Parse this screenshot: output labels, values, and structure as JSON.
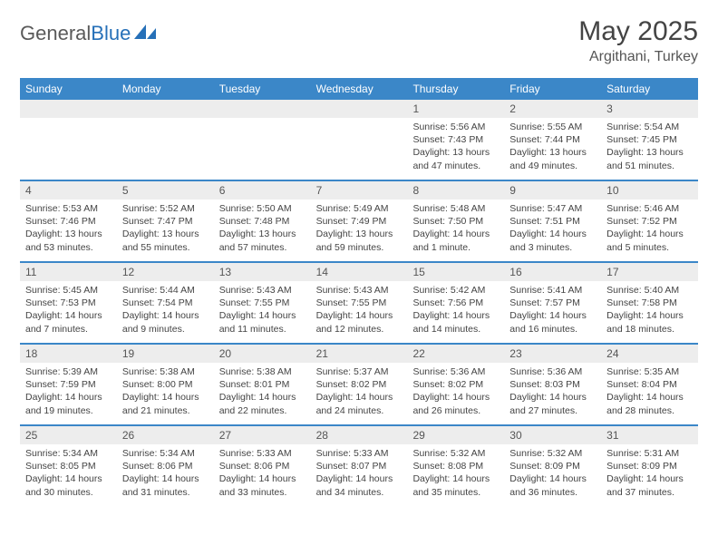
{
  "logo": {
    "name_a": "General",
    "name_b": "Blue"
  },
  "title": "May 2025",
  "subtitle": "Argithani, Turkey",
  "colors": {
    "header_bg": "#3b87c8",
    "header_text": "#ffffff",
    "daynum_bg": "#ededed",
    "daynum_text": "#555555",
    "body_text": "#444444",
    "rule": "#3b87c8"
  },
  "typography": {
    "title_fontsize": 30,
    "subtitle_fontsize": 16,
    "dayhead_fontsize": 12,
    "daynum_fontsize": 12,
    "cell_fontsize": 10.5
  },
  "day_headers": [
    "Sunday",
    "Monday",
    "Tuesday",
    "Wednesday",
    "Thursday",
    "Friday",
    "Saturday"
  ],
  "weeks": [
    [
      {
        "n": "",
        "sr": "",
        "ss": "",
        "dl": ""
      },
      {
        "n": "",
        "sr": "",
        "ss": "",
        "dl": ""
      },
      {
        "n": "",
        "sr": "",
        "ss": "",
        "dl": ""
      },
      {
        "n": "",
        "sr": "",
        "ss": "",
        "dl": ""
      },
      {
        "n": "1",
        "sr": "5:56 AM",
        "ss": "7:43 PM",
        "dl": "13 hours and 47 minutes."
      },
      {
        "n": "2",
        "sr": "5:55 AM",
        "ss": "7:44 PM",
        "dl": "13 hours and 49 minutes."
      },
      {
        "n": "3",
        "sr": "5:54 AM",
        "ss": "7:45 PM",
        "dl": "13 hours and 51 minutes."
      }
    ],
    [
      {
        "n": "4",
        "sr": "5:53 AM",
        "ss": "7:46 PM",
        "dl": "13 hours and 53 minutes."
      },
      {
        "n": "5",
        "sr": "5:52 AM",
        "ss": "7:47 PM",
        "dl": "13 hours and 55 minutes."
      },
      {
        "n": "6",
        "sr": "5:50 AM",
        "ss": "7:48 PM",
        "dl": "13 hours and 57 minutes."
      },
      {
        "n": "7",
        "sr": "5:49 AM",
        "ss": "7:49 PM",
        "dl": "13 hours and 59 minutes."
      },
      {
        "n": "8",
        "sr": "5:48 AM",
        "ss": "7:50 PM",
        "dl": "14 hours and 1 minute."
      },
      {
        "n": "9",
        "sr": "5:47 AM",
        "ss": "7:51 PM",
        "dl": "14 hours and 3 minutes."
      },
      {
        "n": "10",
        "sr": "5:46 AM",
        "ss": "7:52 PM",
        "dl": "14 hours and 5 minutes."
      }
    ],
    [
      {
        "n": "11",
        "sr": "5:45 AM",
        "ss": "7:53 PM",
        "dl": "14 hours and 7 minutes."
      },
      {
        "n": "12",
        "sr": "5:44 AM",
        "ss": "7:54 PM",
        "dl": "14 hours and 9 minutes."
      },
      {
        "n": "13",
        "sr": "5:43 AM",
        "ss": "7:55 PM",
        "dl": "14 hours and 11 minutes."
      },
      {
        "n": "14",
        "sr": "5:43 AM",
        "ss": "7:55 PM",
        "dl": "14 hours and 12 minutes."
      },
      {
        "n": "15",
        "sr": "5:42 AM",
        "ss": "7:56 PM",
        "dl": "14 hours and 14 minutes."
      },
      {
        "n": "16",
        "sr": "5:41 AM",
        "ss": "7:57 PM",
        "dl": "14 hours and 16 minutes."
      },
      {
        "n": "17",
        "sr": "5:40 AM",
        "ss": "7:58 PM",
        "dl": "14 hours and 18 minutes."
      }
    ],
    [
      {
        "n": "18",
        "sr": "5:39 AM",
        "ss": "7:59 PM",
        "dl": "14 hours and 19 minutes."
      },
      {
        "n": "19",
        "sr": "5:38 AM",
        "ss": "8:00 PM",
        "dl": "14 hours and 21 minutes."
      },
      {
        "n": "20",
        "sr": "5:38 AM",
        "ss": "8:01 PM",
        "dl": "14 hours and 22 minutes."
      },
      {
        "n": "21",
        "sr": "5:37 AM",
        "ss": "8:02 PM",
        "dl": "14 hours and 24 minutes."
      },
      {
        "n": "22",
        "sr": "5:36 AM",
        "ss": "8:02 PM",
        "dl": "14 hours and 26 minutes."
      },
      {
        "n": "23",
        "sr": "5:36 AM",
        "ss": "8:03 PM",
        "dl": "14 hours and 27 minutes."
      },
      {
        "n": "24",
        "sr": "5:35 AM",
        "ss": "8:04 PM",
        "dl": "14 hours and 28 minutes."
      }
    ],
    [
      {
        "n": "25",
        "sr": "5:34 AM",
        "ss": "8:05 PM",
        "dl": "14 hours and 30 minutes."
      },
      {
        "n": "26",
        "sr": "5:34 AM",
        "ss": "8:06 PM",
        "dl": "14 hours and 31 minutes."
      },
      {
        "n": "27",
        "sr": "5:33 AM",
        "ss": "8:06 PM",
        "dl": "14 hours and 33 minutes."
      },
      {
        "n": "28",
        "sr": "5:33 AM",
        "ss": "8:07 PM",
        "dl": "14 hours and 34 minutes."
      },
      {
        "n": "29",
        "sr": "5:32 AM",
        "ss": "8:08 PM",
        "dl": "14 hours and 35 minutes."
      },
      {
        "n": "30",
        "sr": "5:32 AM",
        "ss": "8:09 PM",
        "dl": "14 hours and 36 minutes."
      },
      {
        "n": "31",
        "sr": "5:31 AM",
        "ss": "8:09 PM",
        "dl": "14 hours and 37 minutes."
      }
    ]
  ]
}
